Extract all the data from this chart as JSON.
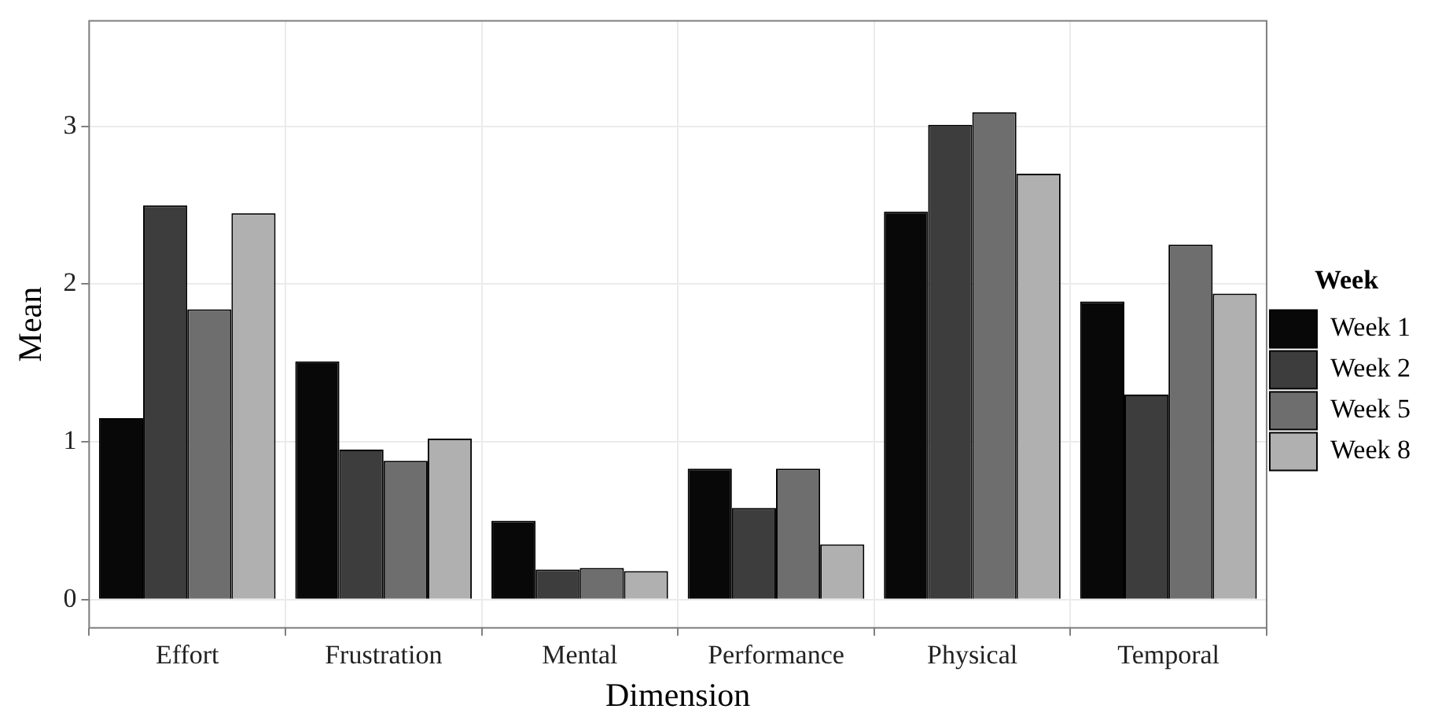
{
  "chart_data": {
    "type": "bar",
    "xlabel": "Dimension",
    "ylabel": "Mean",
    "legend_title": "Week",
    "categories": [
      "Effort",
      "Frustration",
      "Mental",
      "Performance",
      "Physical",
      "Temporal"
    ],
    "series": [
      {
        "name": "Week 1",
        "color": "#080808",
        "values": [
          1.15,
          1.51,
          0.5,
          0.83,
          2.46,
          1.89
        ]
      },
      {
        "name": "Week 2",
        "color": "#3d3d3d",
        "values": [
          2.5,
          0.95,
          0.19,
          0.58,
          3.01,
          1.3
        ]
      },
      {
        "name": "Week 5",
        "color": "#6e6e6e",
        "values": [
          1.84,
          0.88,
          0.2,
          0.83,
          3.09,
          2.25
        ]
      },
      {
        "name": "Week 8",
        "color": "#b0b0b0",
        "values": [
          2.45,
          1.02,
          0.18,
          0.35,
          2.7,
          1.94
        ]
      }
    ],
    "ylim": [
      -0.18,
      3.67
    ],
    "yticks": [
      0,
      1,
      2,
      3
    ],
    "grid": true,
    "legend": "right"
  }
}
